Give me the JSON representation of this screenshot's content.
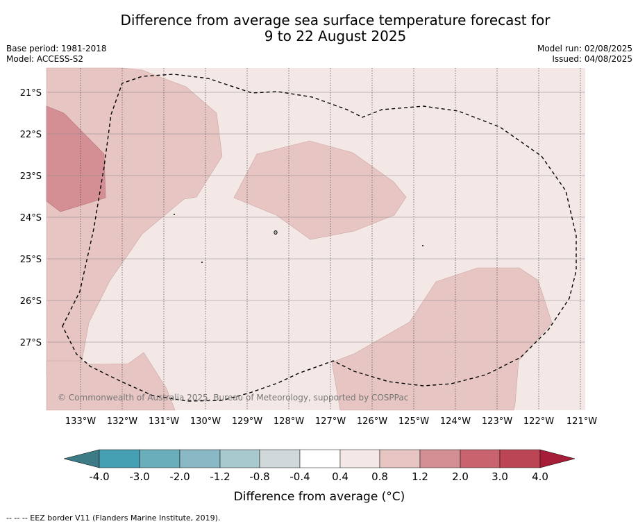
{
  "header": {
    "title_line1": "Difference from average sea surface temperature forecast for",
    "title_line2": "9 to 22 August 2025",
    "base_period": "Base period: 1981-2018",
    "model": "Model: ACCESS-S2",
    "model_run": "Model run: 02/08/2025",
    "issued": "Issued: 04/08/2025"
  },
  "map": {
    "lat_labels": [
      "21°S",
      "22°S",
      "23°S",
      "24°S",
      "25°S",
      "26°S",
      "27°S"
    ],
    "lon_labels": [
      "133°W",
      "132°W",
      "131°W",
      "130°W",
      "129°W",
      "128°W",
      "127°W",
      "126°W",
      "125°W",
      "124°W",
      "123°W",
      "122°W",
      "121°W"
    ],
    "copyright": "© Commonwealth of Australia 2025, Bureau of Meteorology, supported by COSPPac",
    "colors": {
      "band_0.4_0.8": "#f4e8e7",
      "band_0.8_1.2": "#e6c5c2",
      "band_1.2_2.0": "#d48f95",
      "eez_line": "#000000"
    }
  },
  "colorbar": {
    "ticks": [
      "-4.0",
      "-3.0",
      "-2.0",
      "-1.2",
      "-0.8",
      "-0.4",
      "0.4",
      "0.8",
      "1.2",
      "2.0",
      "3.0",
      "4.0"
    ],
    "colors": [
      "#3d7b87",
      "#45a0b3",
      "#6aaebb",
      "#8ab8c4",
      "#a8c9ce",
      "#d0d8da",
      "#ffffff",
      "#f4e8e7",
      "#e6c5c2",
      "#d48f95",
      "#c9636d",
      "#bc4553",
      "#a51d38"
    ],
    "label": "Difference from average (°C)"
  },
  "footer": {
    "note": "--  --  -- EEZ border V11 (Flanders Marine Institute, 2019)."
  }
}
